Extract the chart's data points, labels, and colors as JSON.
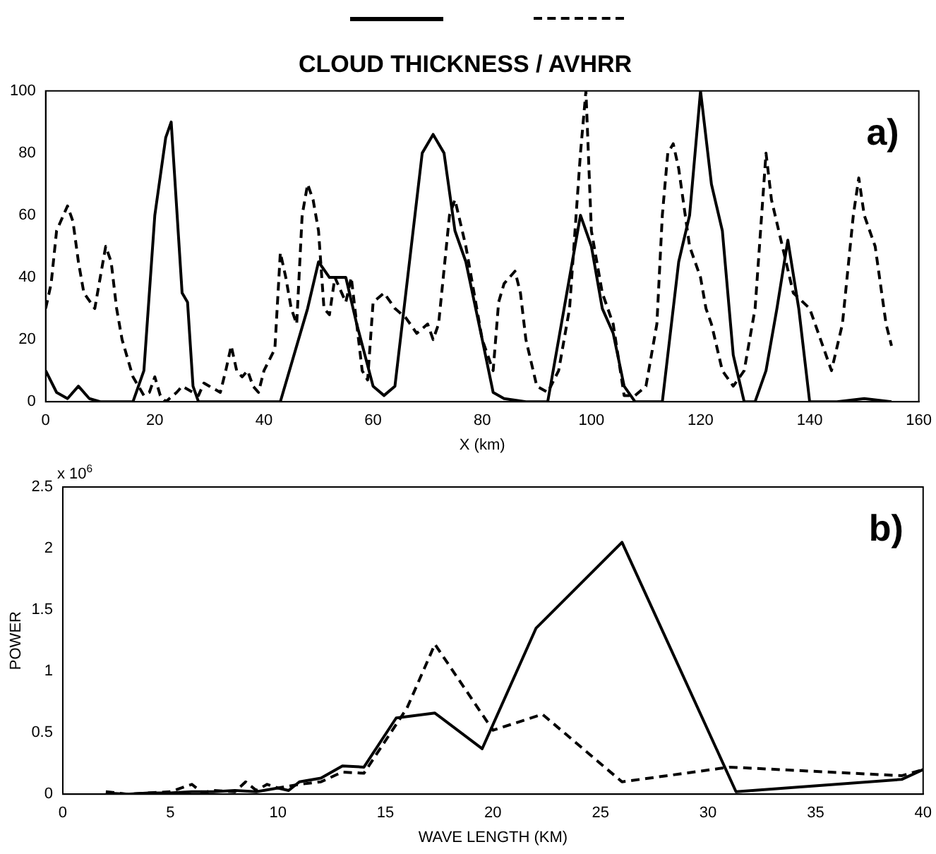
{
  "chart_data": [
    {
      "type": "line",
      "title": "CLOUD THICKNESS / AVHRR",
      "xlabel": "X (km)",
      "annotations": [
        "a)"
      ],
      "marker": "none",
      "grid": false,
      "xlim": [
        0,
        160
      ],
      "xticks": [
        0,
        20,
        40,
        60,
        80,
        100,
        120,
        140,
        160
      ],
      "ylim": [
        0,
        100
      ],
      "yticks": [
        0,
        20,
        40,
        60,
        80,
        100
      ],
      "series": [
        {
          "color": "#000000",
          "line_style": "solid",
          "x": [
            0,
            2,
            4,
            6,
            8,
            10,
            16,
            18,
            20,
            22,
            23,
            25,
            26,
            27,
            28,
            43,
            46,
            48,
            50,
            52,
            55,
            57,
            60,
            62,
            64,
            67,
            69,
            71,
            73,
            75,
            77,
            80,
            82,
            84,
            88,
            92,
            95,
            98,
            100,
            102,
            104,
            106,
            108,
            113,
            116,
            118,
            120,
            122,
            124,
            126,
            128,
            130,
            132,
            134,
            136,
            138,
            140,
            145,
            150,
            155
          ],
          "values": [
            10,
            3,
            1,
            5,
            1,
            0,
            0,
            10,
            60,
            85,
            90,
            35,
            32,
            5,
            0,
            0,
            18,
            30,
            45,
            40,
            40,
            25,
            5,
            2,
            5,
            50,
            80,
            86,
            80,
            55,
            45,
            20,
            3,
            1,
            0,
            0,
            30,
            60,
            50,
            30,
            22,
            5,
            0,
            0,
            45,
            60,
            100,
            70,
            55,
            15,
            0,
            0,
            10,
            30,
            52,
            30,
            0,
            0,
            1,
            0
          ]
        },
        {
          "color": "#000000",
          "line_style": "dashed",
          "x": [
            0,
            1,
            2,
            4,
            5,
            6,
            7,
            9,
            10,
            11,
            12,
            13,
            14,
            16,
            17,
            18,
            19,
            20,
            21,
            22,
            24,
            25,
            27,
            28,
            29,
            30,
            32,
            33,
            34,
            35,
            36,
            37,
            38,
            39,
            40,
            42,
            43,
            44,
            45,
            46,
            47,
            48,
            49,
            50,
            51,
            52,
            53,
            54,
            55,
            56,
            57,
            58,
            59,
            60,
            62,
            64,
            66,
            68,
            70,
            71,
            72,
            74,
            75,
            77,
            78,
            80,
            82,
            83,
            84,
            86,
            87,
            88,
            90,
            92,
            94,
            96,
            97,
            98,
            99,
            100,
            102,
            104,
            106,
            108,
            110,
            112,
            113,
            114,
            115,
            116,
            118,
            120,
            121,
            122,
            124,
            126,
            128,
            129,
            130,
            131,
            132,
            133,
            135,
            137,
            140,
            142,
            144,
            146,
            148,
            149,
            150,
            152,
            154,
            155
          ],
          "values": [
            30,
            38,
            55,
            63,
            58,
            45,
            35,
            30,
            40,
            50,
            45,
            30,
            20,
            8,
            5,
            2,
            3,
            8,
            2,
            0,
            3,
            5,
            3,
            2,
            6,
            5,
            3,
            10,
            18,
            10,
            8,
            10,
            5,
            3,
            10,
            17,
            48,
            40,
            30,
            25,
            60,
            70,
            65,
            55,
            30,
            28,
            40,
            36,
            32,
            40,
            25,
            10,
            7,
            32,
            35,
            30,
            27,
            22,
            25,
            20,
            25,
            60,
            65,
            50,
            40,
            20,
            10,
            32,
            38,
            42,
            35,
            20,
            5,
            3,
            10,
            30,
            55,
            80,
            100,
            55,
            35,
            25,
            2,
            2,
            5,
            25,
            60,
            80,
            83,
            75,
            50,
            40,
            30,
            25,
            10,
            5,
            10,
            20,
            30,
            55,
            80,
            65,
            50,
            35,
            30,
            20,
            10,
            25,
            60,
            72,
            60,
            50,
            25,
            18
          ]
        }
      ]
    },
    {
      "type": "line",
      "xlabel": "WAVE LENGTH (KM)",
      "ylabel": "POWER",
      "annotations": [
        "x 10$^{6}$",
        "b)"
      ],
      "marker": "none",
      "grid": false,
      "xlim": [
        0,
        40
      ],
      "xticks": [
        0,
        5,
        10,
        15,
        20,
        25,
        30,
        35,
        40
      ],
      "ylim": [
        0,
        2.5
      ],
      "yticks": [
        0,
        0.5,
        1,
        1.5,
        2,
        2.5
      ],
      "series": [
        {
          "color": "#000000",
          "line_style": "solid",
          "x": [
            2,
            3,
            4,
            5,
            6,
            7,
            8,
            9,
            10,
            10.5,
            11,
            12,
            13,
            14,
            15.5,
            17.3,
            19.5,
            22,
            26,
            31.3,
            39,
            40
          ],
          "values": [
            0.01,
            0,
            0.01,
            0.01,
            0.02,
            0.02,
            0.03,
            0.02,
            0.05,
            0.03,
            0.1,
            0.13,
            0.23,
            0.22,
            0.62,
            0.66,
            0.37,
            1.35,
            2.05,
            0.02,
            0.12,
            0.2
          ]
        },
        {
          "color": "#000000",
          "line_style": "dashed",
          "x": [
            2,
            3,
            5,
            6,
            6.5,
            7,
            8,
            8.5,
            9,
            9.5,
            10,
            11,
            12,
            13,
            14,
            16,
            17.3,
            20,
            22.3,
            26,
            31,
            39,
            40
          ],
          "values": [
            0.02,
            0,
            0.02,
            0.08,
            0.01,
            0.03,
            0.02,
            0.1,
            0.03,
            0.08,
            0.05,
            0.08,
            0.1,
            0.18,
            0.17,
            0.7,
            1.22,
            0.52,
            0.65,
            0.1,
            0.22,
            0.15,
            0.2
          ]
        }
      ]
    }
  ]
}
